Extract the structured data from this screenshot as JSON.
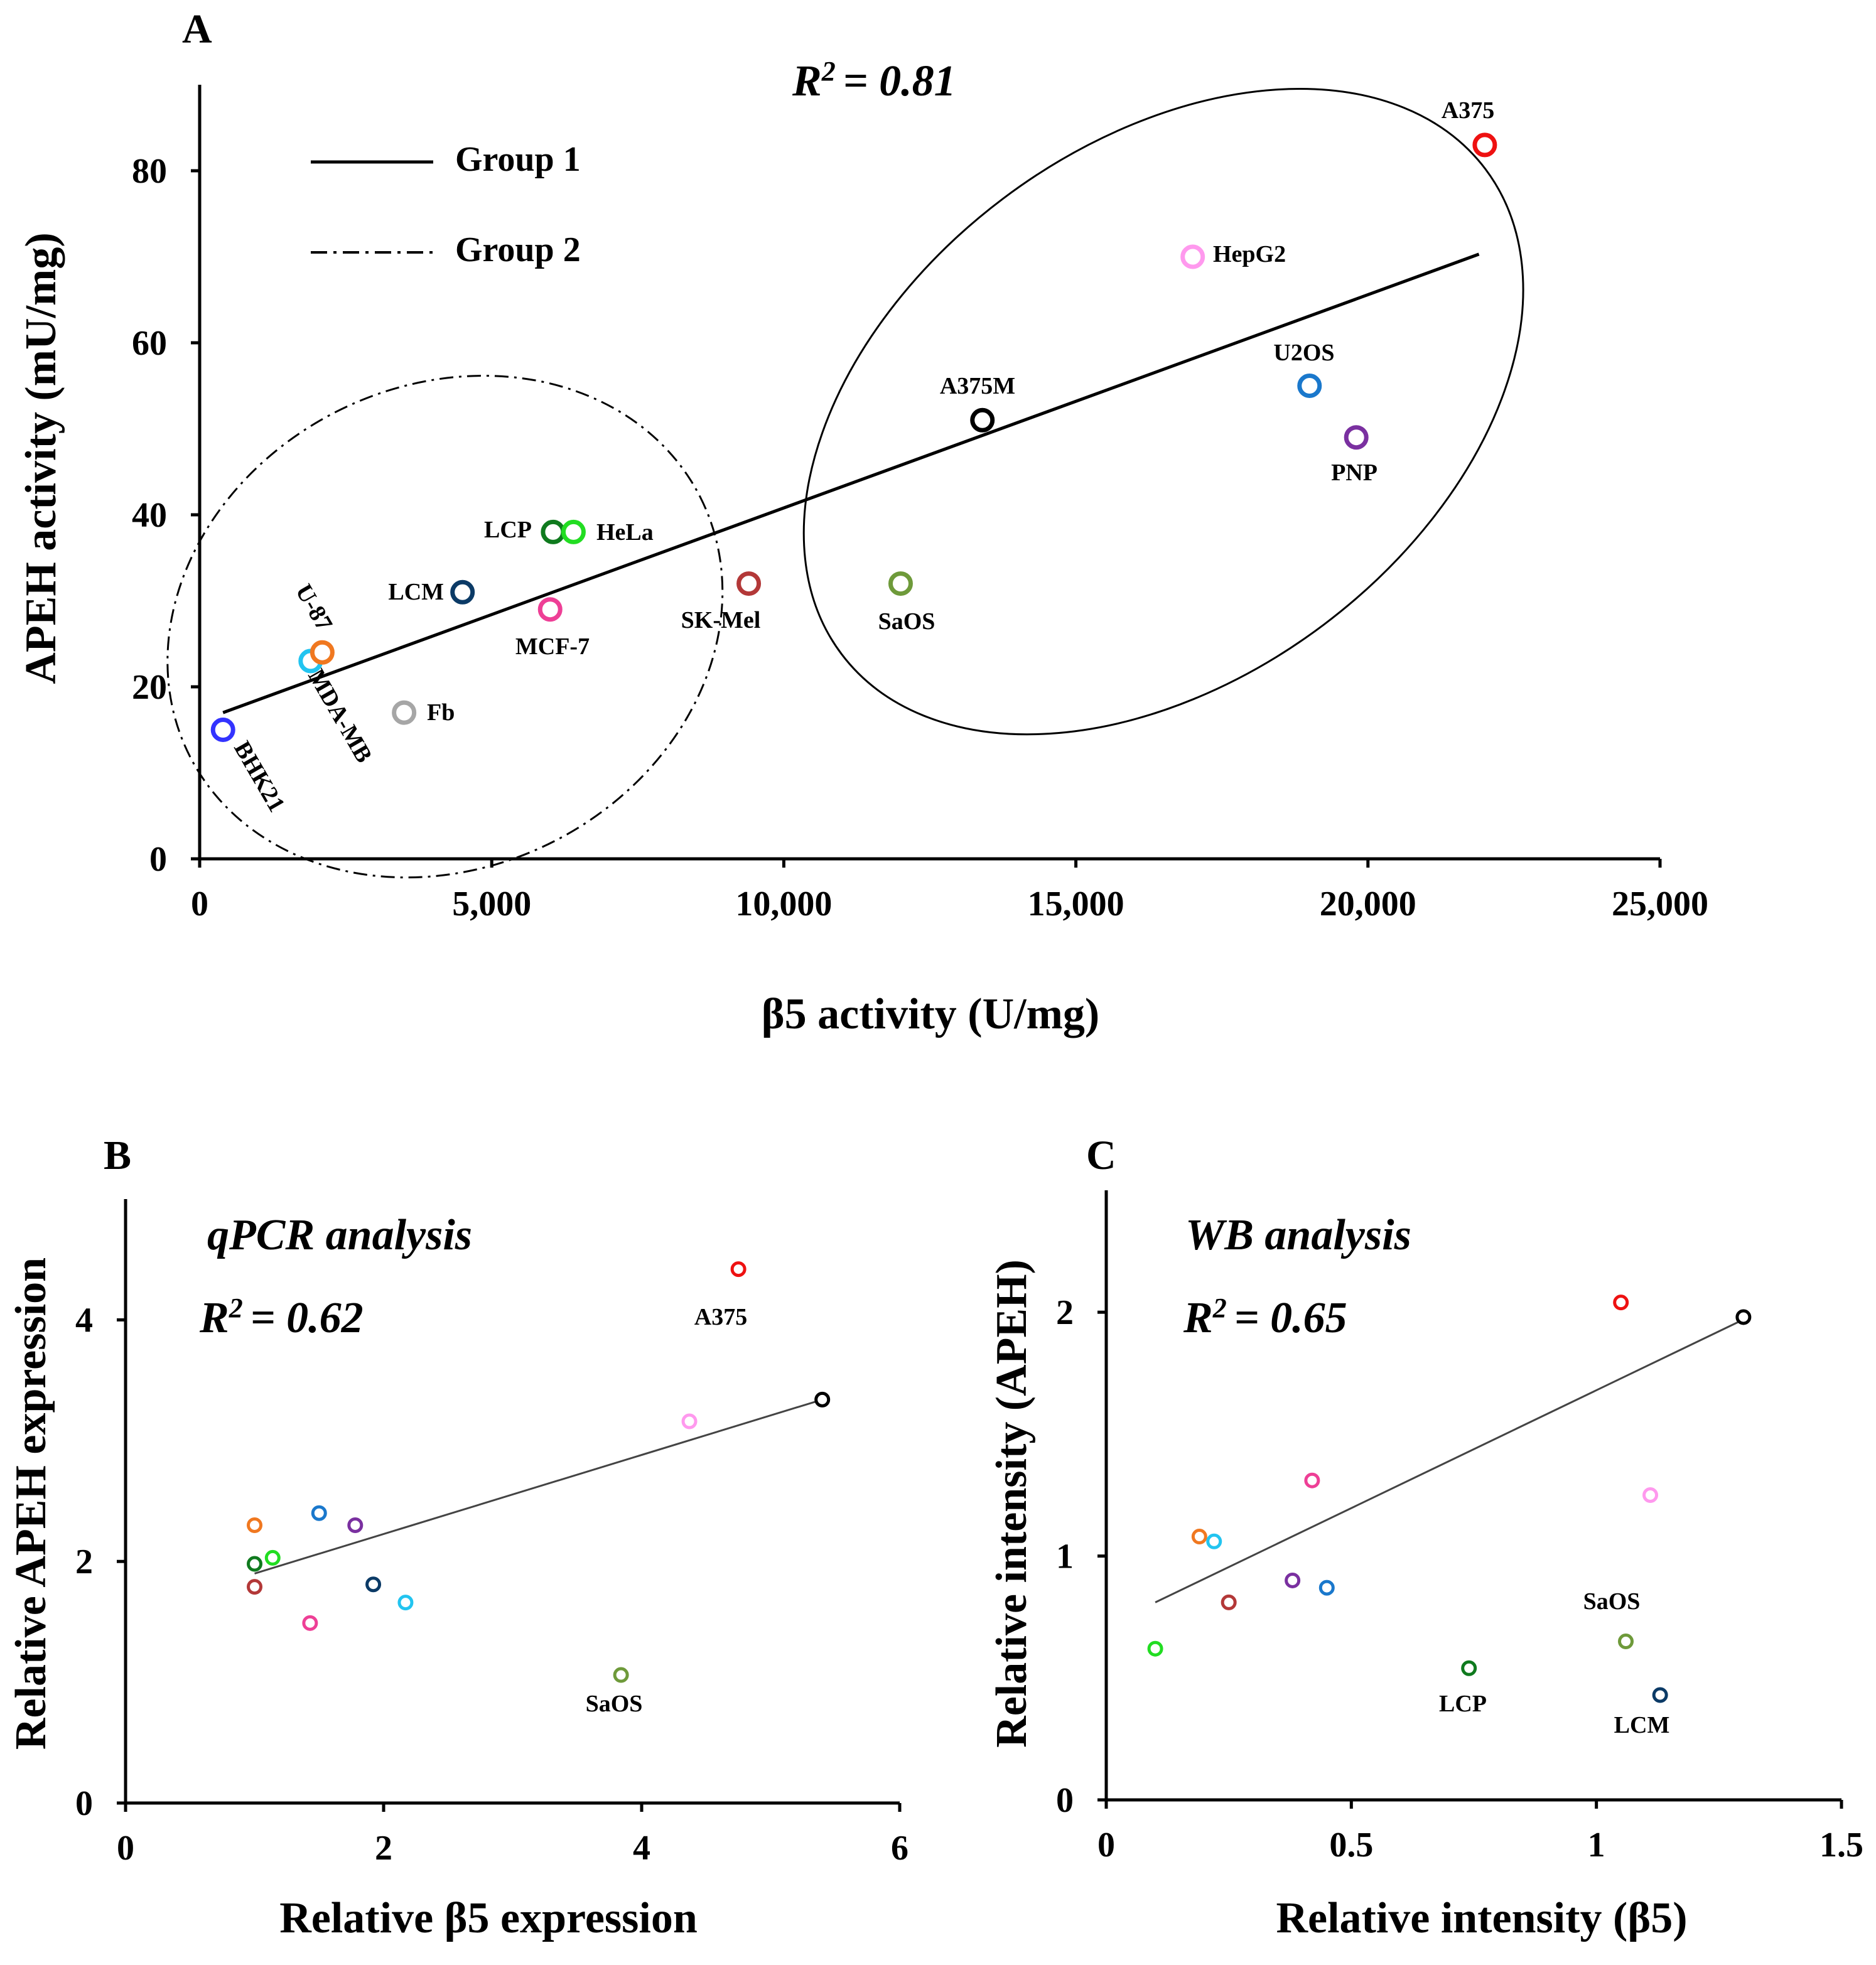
{
  "figure": {
    "panels": [
      "A",
      "B",
      "C"
    ]
  },
  "chart_data": [
    {
      "type": "scatter",
      "panel": "A",
      "title": "",
      "annotation": "R² = 0.81",
      "annotation_parts": {
        "r": "R",
        "sup": "2",
        "value": "= 0.81"
      },
      "xlabel": "β5 activity (U/mg)",
      "ylabel": "APEH activity (mU/mg)",
      "xlim": [
        0,
        25000
      ],
      "ylim": [
        0,
        90
      ],
      "xticks": [
        0,
        5000,
        10000,
        15000,
        20000,
        25000
      ],
      "xtick_labels": [
        "0",
        "5,000",
        "10,000",
        "15,000",
        "20,000",
        "25,000"
      ],
      "yticks": [
        0,
        20,
        40,
        60,
        80
      ],
      "ytick_labels": [
        "0",
        "20",
        "40",
        "60",
        "80"
      ],
      "legend": [
        {
          "label": "Group 1",
          "style": "solid"
        },
        {
          "label": "Group 2",
          "style": "dash-dot"
        }
      ],
      "points": [
        {
          "label": "BHK21",
          "x": 400,
          "y": 15,
          "color": "#3333ff"
        },
        {
          "label": "MDA-MB",
          "x": 1900,
          "y": 23,
          "color": "#22c4f0"
        },
        {
          "label": "U-87",
          "x": 2100,
          "y": 24,
          "color": "#f07820"
        },
        {
          "label": "Fb",
          "x": 3500,
          "y": 17,
          "color": "#a6a6a6"
        },
        {
          "label": "LCM",
          "x": 4500,
          "y": 31,
          "color": "#0b3a66"
        },
        {
          "label": "MCF-7",
          "x": 6000,
          "y": 29,
          "color": "#ee3f96"
        },
        {
          "label": "LCP",
          "x": 6050,
          "y": 38,
          "color": "#0f7a1e"
        },
        {
          "label": "HeLa",
          "x": 6400,
          "y": 38,
          "color": "#22dd22"
        },
        {
          "label": "SK-Mel",
          "x": 9400,
          "y": 32,
          "color": "#b33838"
        },
        {
          "label": "SaOS",
          "x": 12000,
          "y": 32,
          "color": "#6e9a3a"
        },
        {
          "label": "A375M",
          "x": 13400,
          "y": 51,
          "color": "#000000"
        },
        {
          "label": "HepG2",
          "x": 17000,
          "y": 70,
          "color": "#ff99ee"
        },
        {
          "label": "U2OS",
          "x": 19000,
          "y": 55,
          "color": "#1a78cc"
        },
        {
          "label": "PNP",
          "x": 19800,
          "y": 49,
          "color": "#7a30a0"
        },
        {
          "label": "A375",
          "x": 22000,
          "y": 83,
          "color": "#ee1111"
        }
      ],
      "trendline": {
        "x": [
          400,
          21900
        ],
        "y": [
          17,
          70.3
        ]
      },
      "groups": [
        {
          "name": "Group 2",
          "style": "dash-dot",
          "center": [
            4200,
            27
          ],
          "rx_units": 4900,
          "ry_units": 28,
          "rotation_deg": -27
        },
        {
          "name": "Group 1",
          "style": "solid",
          "center": [
            16500,
            52
          ],
          "rx_units": 6900,
          "ry_units": 31,
          "rotation_deg": -37
        }
      ]
    },
    {
      "type": "scatter",
      "panel": "B",
      "title": "qPCR analysis",
      "annotation": "R² = 0.62",
      "annotation_parts": {
        "r": "R",
        "sup": "2",
        "value": "= 0.62"
      },
      "xlabel": "Relative β5 expression",
      "ylabel": "Relative APEH expression",
      "xlim": [
        0,
        6
      ],
      "ylim": [
        0,
        5
      ],
      "xticks": [
        0,
        2,
        4,
        6
      ],
      "xtick_labels": [
        "0",
        "2",
        "4",
        "6"
      ],
      "yticks": [
        0,
        2,
        4
      ],
      "ytick_labels": [
        "0",
        "2",
        "4"
      ],
      "points": [
        {
          "label": "",
          "x": 1.0,
          "y": 2.3,
          "color": "#f07820"
        },
        {
          "label": "",
          "x": 1.0,
          "y": 1.98,
          "color": "#0f7a1e"
        },
        {
          "label": "",
          "x": 1.0,
          "y": 1.79,
          "color": "#b33838"
        },
        {
          "label": "",
          "x": 1.14,
          "y": 2.03,
          "color": "#22dd22"
        },
        {
          "label": "",
          "x": 1.43,
          "y": 1.49,
          "color": "#ee3f96"
        },
        {
          "label": "",
          "x": 1.5,
          "y": 2.4,
          "color": "#1a78cc"
        },
        {
          "label": "",
          "x": 1.78,
          "y": 2.3,
          "color": "#7a30a0"
        },
        {
          "label": "",
          "x": 1.92,
          "y": 1.81,
          "color": "#0b3a66"
        },
        {
          "label": "",
          "x": 2.17,
          "y": 1.66,
          "color": "#22c4f0"
        },
        {
          "label": "SaOS",
          "x": 3.84,
          "y": 1.06,
          "color": "#6e9a3a"
        },
        {
          "label": "",
          "x": 4.37,
          "y": 3.16,
          "color": "#ff99ee"
        },
        {
          "label": "A375",
          "x": 4.75,
          "y": 4.42,
          "color": "#ee1111"
        },
        {
          "label": "",
          "x": 5.4,
          "y": 3.34,
          "color": "#000000"
        }
      ],
      "trendline": {
        "x": [
          1.0,
          5.4
        ],
        "y": [
          1.9,
          3.34
        ]
      }
    },
    {
      "type": "scatter",
      "panel": "C",
      "title": "WB analysis",
      "annotation": "R² = 0.65",
      "annotation_parts": {
        "r": "R",
        "sup": "2",
        "value": "= 0.65"
      },
      "xlabel": "Relative intensity (β5)",
      "ylabel": "Relative intensity (APEH)",
      "xlim": [
        0,
        1.5
      ],
      "ylim": [
        0,
        2.5
      ],
      "xticks": [
        0,
        0.5,
        1,
        1.5
      ],
      "xtick_labels": [
        "0",
        "0.5",
        "1",
        "1.5"
      ],
      "yticks": [
        0,
        1,
        2
      ],
      "ytick_labels": [
        "0",
        "1",
        "2"
      ],
      "points": [
        {
          "label": "",
          "x": 0.1,
          "y": 0.62,
          "color": "#22dd22"
        },
        {
          "label": "",
          "x": 0.19,
          "y": 1.08,
          "color": "#f07820"
        },
        {
          "label": "",
          "x": 0.22,
          "y": 1.06,
          "color": "#22c4f0"
        },
        {
          "label": "",
          "x": 0.25,
          "y": 0.81,
          "color": "#b33838"
        },
        {
          "label": "",
          "x": 0.38,
          "y": 0.9,
          "color": "#7a30a0"
        },
        {
          "label": "",
          "x": 0.42,
          "y": 1.31,
          "color": "#ee3f96"
        },
        {
          "label": "",
          "x": 0.45,
          "y": 0.87,
          "color": "#1a78cc"
        },
        {
          "label": "LCP",
          "x": 0.74,
          "y": 0.54,
          "color": "#0f7a1e"
        },
        {
          "label": "",
          "x": 1.05,
          "y": 2.04,
          "color": "#ee1111"
        },
        {
          "label": "SaOS",
          "x": 1.06,
          "y": 0.65,
          "color": "#6e9a3a"
        },
        {
          "label": "",
          "x": 1.11,
          "y": 1.25,
          "color": "#ff99ee"
        },
        {
          "label": "LCM",
          "x": 1.13,
          "y": 0.43,
          "color": "#0b3a66"
        },
        {
          "label": "",
          "x": 1.3,
          "y": 1.98,
          "color": "#000000"
        }
      ],
      "trendline": {
        "x": [
          0.1,
          1.3
        ],
        "y": [
          0.81,
          1.97
        ]
      }
    }
  ]
}
